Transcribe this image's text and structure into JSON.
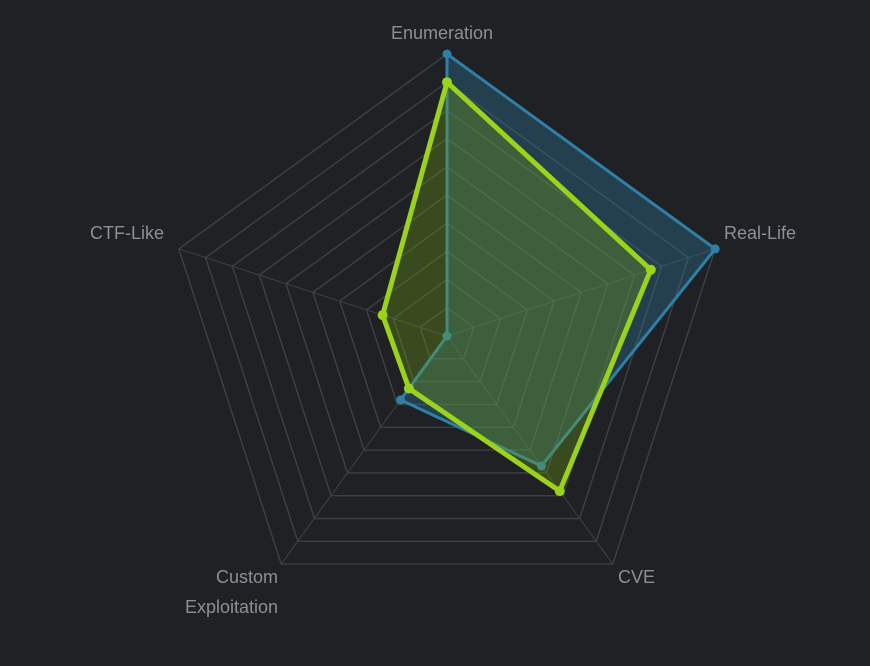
{
  "chart_data": {
    "type": "radar",
    "axes": [
      "Enumeration",
      "Real-Life",
      "CVE",
      "Custom Exploitation",
      "CTF-Like"
    ],
    "axis_label_lines": [
      [
        "Enumeration"
      ],
      [
        "Real-Life"
      ],
      [
        "CVE"
      ],
      [
        "Custom",
        "Exploitation"
      ],
      [
        "CTF-Like"
      ]
    ],
    "rmax": 10,
    "grid_levels": 10,
    "series": [
      {
        "color": "#2f7fa6",
        "fill": "rgba(47,127,166,0.32)",
        "values": [
          10.0,
          10.0,
          5.7,
          2.8,
          0.0
        ]
      },
      {
        "color": "#9bd21a",
        "fill": "rgba(120,168,20,0.30)",
        "values": [
          9.0,
          7.6,
          6.8,
          2.3,
          2.4
        ]
      }
    ]
  }
}
